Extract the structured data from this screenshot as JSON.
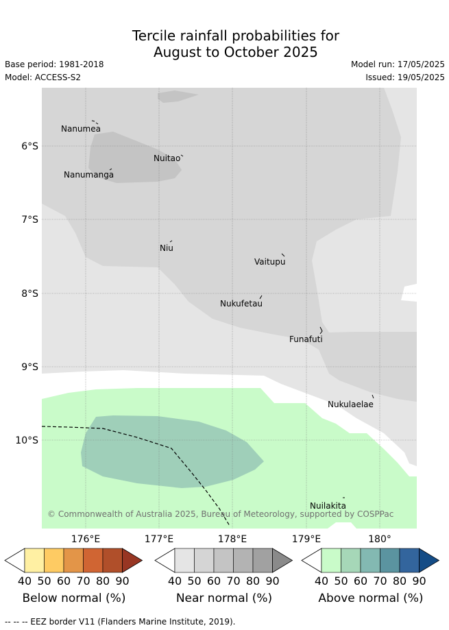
{
  "title": {
    "line1": "Tercile rainfall probabilities for",
    "line2": "August to October 2025"
  },
  "meta": {
    "base_period": "Base period: 1981-2018",
    "model": "Model: ACCESS-S2",
    "model_run": "Model run: 17/05/2025",
    "issued": "Issued: 19/05/2025"
  },
  "map": {
    "lat_labels": [
      "6°S",
      "7°S",
      "8°S",
      "9°S",
      "10°S"
    ],
    "lon_labels": [
      "176°E",
      "177°E",
      "178°E",
      "179°E",
      "180°"
    ],
    "places": [
      "Nanumea",
      "Nuitao",
      "Nanumanga",
      "Niu",
      "Vaitupu",
      "Nukufetau",
      "Funafuti",
      "Nukulaelae",
      "Nuilakita"
    ],
    "copyright": "© Commonwealth of Australia 2025, Bureau of Meteorology, supported by COSPPac",
    "eez_border": "EEZ border V11"
  },
  "colorbars": {
    "ticks": [
      "40",
      "50",
      "60",
      "70",
      "80",
      "90"
    ],
    "below": {
      "label": "Below normal (%)",
      "colors": [
        "#ffffff",
        "#fff0a3",
        "#fecb63",
        "#e39548",
        "#d06533",
        "#b04f2a",
        "#983623"
      ]
    },
    "near": {
      "label": "Near normal (%)",
      "colors": [
        "#ffffff",
        "#e5e5e5",
        "#d5d5d5",
        "#c4c4c4",
        "#b3b3b3",
        "#a1a1a1",
        "#8a8a8a"
      ]
    },
    "above": {
      "label": "Above normal (%)",
      "colors": [
        "#ffffff",
        "#c9fbc9",
        "#a6d7b8",
        "#83b9b2",
        "#5b94a0",
        "#33659d",
        "#144c86"
      ]
    }
  },
  "footer": "--  --  -- EEZ border V11 (Flanders Marine Institute, 2019)."
}
